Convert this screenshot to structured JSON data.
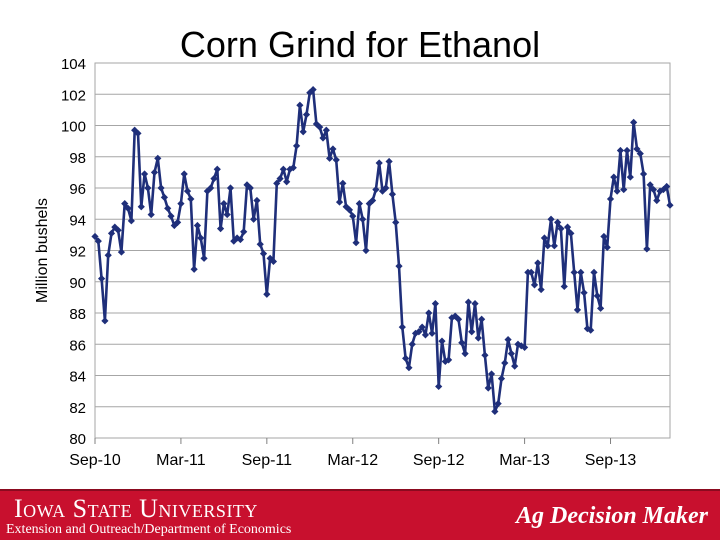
{
  "chart_data": {
    "type": "line",
    "title": "Corn Grind for Ethanol",
    "xlabel": "",
    "ylabel": "Million bushels",
    "ylim": [
      80,
      104
    ],
    "yticks": [
      80,
      82,
      84,
      86,
      88,
      90,
      92,
      94,
      96,
      98,
      100,
      102,
      104
    ],
    "x_tick_labels": [
      "Sep-10",
      "Mar-11",
      "Sep-11",
      "Mar-12",
      "Sep-12",
      "Mar-13",
      "Sep-13"
    ],
    "x_tick_week_index": [
      0,
      26,
      52,
      78,
      104,
      130,
      156
    ],
    "x_unit": "week index from Sep-10",
    "grid": "horizontal",
    "legend": "none",
    "line_color": "#1f2f7a",
    "series": [
      {
        "values": [
          92.9,
          92.6,
          90.2,
          87.5,
          91.7,
          93.1,
          93.5,
          93.3,
          91.9,
          95.0,
          94.7,
          93.9,
          99.7,
          99.5,
          94.8,
          96.9,
          96.0,
          94.3,
          97.0,
          97.9,
          96.0,
          95.4,
          94.7,
          94.2,
          93.6,
          93.8,
          95.0,
          96.9,
          95.8,
          95.3,
          90.8,
          93.6,
          92.8,
          91.5,
          95.8,
          96.0,
          96.6,
          97.2,
          93.4,
          95.0,
          94.3,
          96.0,
          92.6,
          92.8,
          92.7,
          93.2,
          96.2,
          96.0,
          94.0,
          95.2,
          92.4,
          91.8,
          89.2,
          91.5,
          91.3,
          96.3,
          96.6,
          97.2,
          96.4,
          97.2,
          97.3,
          98.7,
          101.3,
          99.6,
          100.7,
          102.1,
          102.3,
          100.1,
          99.9,
          99.2,
          99.7,
          97.9,
          98.5,
          97.8,
          95.1,
          96.3,
          94.8,
          94.6,
          94.2,
          92.5,
          95.0,
          94.0,
          92.0,
          95.0,
          95.2,
          95.9,
          97.6,
          95.8,
          96.0,
          97.7,
          95.6,
          93.8,
          91.0,
          87.1,
          85.1,
          84.5,
          86.0,
          86.7,
          86.8,
          87.1,
          86.6,
          88.0,
          86.7,
          88.6,
          83.3,
          86.2,
          84.9,
          85.0,
          87.7,
          87.8,
          87.6,
          86.1,
          85.4,
          88.7,
          86.8,
          88.6,
          86.4,
          87.6,
          85.3,
          83.2,
          84.1,
          81.7,
          82.2,
          83.8,
          84.8,
          86.3,
          85.4,
          84.6,
          86.0,
          85.9,
          85.8,
          90.6,
          90.6,
          89.8,
          91.2,
          89.5,
          92.8,
          92.3,
          94.0,
          92.3,
          93.8,
          93.4,
          89.7,
          93.5,
          93.1,
          90.6,
          88.2,
          90.6,
          89.3,
          87.0,
          86.9,
          90.6,
          89.1,
          88.3,
          92.9,
          92.2,
          95.3,
          96.7,
          95.8,
          98.4,
          95.9,
          98.4,
          96.7,
          100.2,
          98.5,
          98.2,
          96.9,
          92.1,
          96.2,
          95.9,
          95.2,
          95.8,
          95.9,
          96.1,
          94.9
        ]
      }
    ]
  },
  "footer": {
    "university": "Iowa State University",
    "department": "Extension and Outreach/Department of Economics",
    "brand": "Ag Decision Maker"
  }
}
